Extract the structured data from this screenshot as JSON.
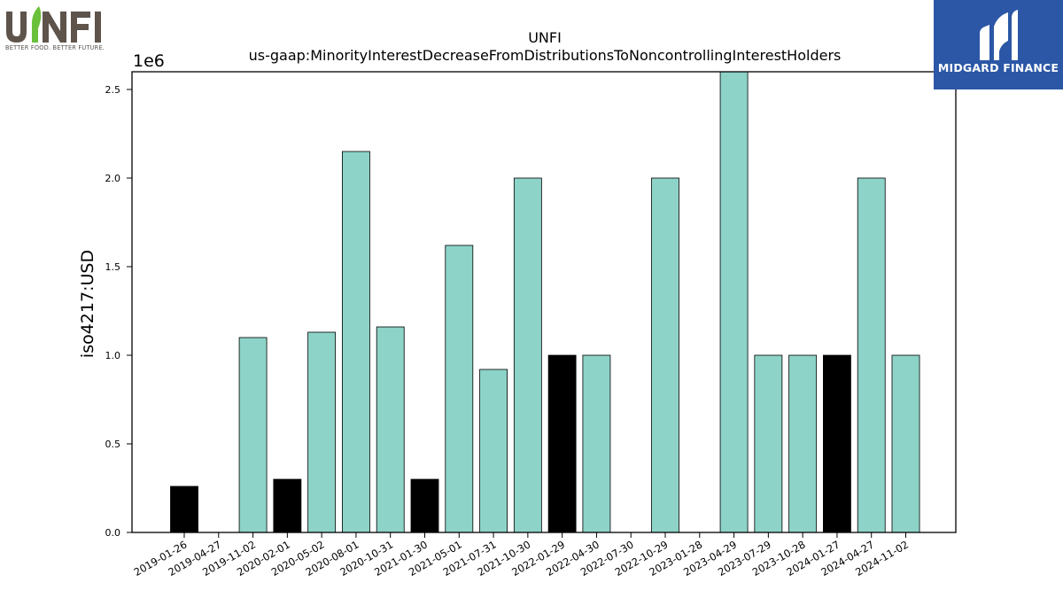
{
  "logos": {
    "left": {
      "text": "UNFI",
      "tagline": "BETTER FOOD. BETTER FUTURE.",
      "colors": {
        "letters": "#5e544c",
        "leaf": "#6abf3b"
      }
    },
    "right": {
      "text": "MIDGARD FINANCE",
      "background": "#2b57a6"
    }
  },
  "chart_data": {
    "type": "bar",
    "title": "UNFI",
    "subtitle": "us-gaap:MinorityInterestDecreaseFromDistributionsToNoncontrollingInterestHolders",
    "xlabel": "",
    "ylabel": "iso4217:USD",
    "y_offset_label": "1e6",
    "y_scale": 1000000,
    "ylim": [
      0,
      2600000
    ],
    "yticks": [
      0,
      500000,
      1000000,
      1500000,
      2000000,
      2500000
    ],
    "ytick_labels": [
      "0.0",
      "0.5",
      "1.0",
      "1.5",
      "2.0",
      "2.5"
    ],
    "grid": false,
    "colors": {
      "teal": "#8dd3c7",
      "black": "#000000"
    },
    "categories": [
      "2019-01-26",
      "2019-04-27",
      "2019-11-02",
      "2020-02-01",
      "2020-05-02",
      "2020-08-01",
      "2020-10-31",
      "2021-01-30",
      "2021-05-01",
      "2021-07-31",
      "2021-10-30",
      "2022-01-29",
      "2022-04-30",
      "2022-07-30",
      "2022-10-29",
      "2023-01-28",
      "2023-04-29",
      "2023-07-29",
      "2023-10-28",
      "2024-01-27",
      "2024-04-27",
      "2024-11-02"
    ],
    "values": [
      260000,
      0,
      1100000,
      300000,
      1130000,
      2150000,
      1160000,
      300000,
      1620000,
      920000,
      2000000,
      1000000,
      1000000,
      0,
      2000000,
      0,
      2600000,
      1000000,
      1000000,
      1000000,
      2000000,
      1000000
    ],
    "bar_colors": [
      "black",
      "teal",
      "teal",
      "black",
      "teal",
      "teal",
      "teal",
      "black",
      "teal",
      "teal",
      "teal",
      "black",
      "teal",
      "teal",
      "teal",
      "teal",
      "teal",
      "teal",
      "teal",
      "black",
      "teal",
      "teal"
    ]
  }
}
